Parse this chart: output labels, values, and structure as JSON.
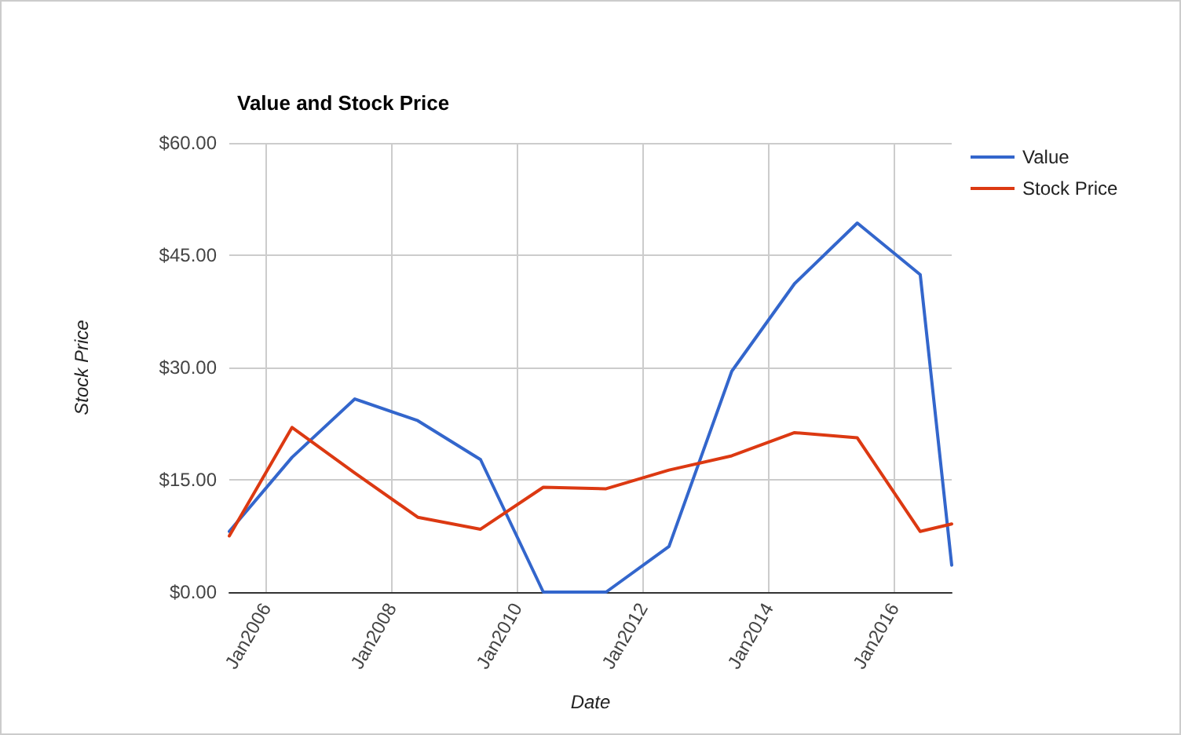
{
  "chart_data": {
    "type": "line",
    "title": "Value and Stock Price",
    "xlabel": "Date",
    "ylabel": "Stock Price",
    "x": [
      "2005-06",
      "2006-06",
      "2007-06",
      "2008-06",
      "2009-06",
      "2010-06",
      "2011-06",
      "2012-06",
      "2013-06",
      "2014-06",
      "2015-06",
      "2016-06",
      "2016-12"
    ],
    "series": [
      {
        "name": "Value",
        "color": "#3366cc",
        "values": [
          8.1,
          18.0,
          25.8,
          22.9,
          17.7,
          0,
          0,
          6.1,
          29.5,
          41.2,
          49.3,
          42.4,
          3.6
        ]
      },
      {
        "name": "Stock Price",
        "color": "#dc3912",
        "values": [
          7.5,
          22.0,
          15.9,
          10.0,
          8.4,
          14.0,
          13.8,
          16.3,
          18.2,
          21.3,
          20.6,
          8.1,
          9.1
        ]
      }
    ],
    "xlim": [
      "2005-06",
      "2016-12"
    ],
    "xticks": [
      {
        "value": "2006-01",
        "label": "Jan2006"
      },
      {
        "value": "2008-01",
        "label": "Jan2008"
      },
      {
        "value": "2010-01",
        "label": "Jan2010"
      },
      {
        "value": "2012-01",
        "label": "Jan2012"
      },
      {
        "value": "2014-01",
        "label": "Jan2014"
      },
      {
        "value": "2016-01",
        "label": "Jan2016"
      }
    ],
    "ylim": [
      0,
      60
    ],
    "yticks": [
      {
        "value": 0,
        "label": "$0.00"
      },
      {
        "value": 15,
        "label": "$15.00"
      },
      {
        "value": 30,
        "label": "$30.00"
      },
      {
        "value": 45,
        "label": "$45.00"
      },
      {
        "value": 60,
        "label": "$60.00"
      }
    ],
    "grid": true,
    "legend": "top right",
    "marker": "none",
    "line_style": "solid"
  }
}
